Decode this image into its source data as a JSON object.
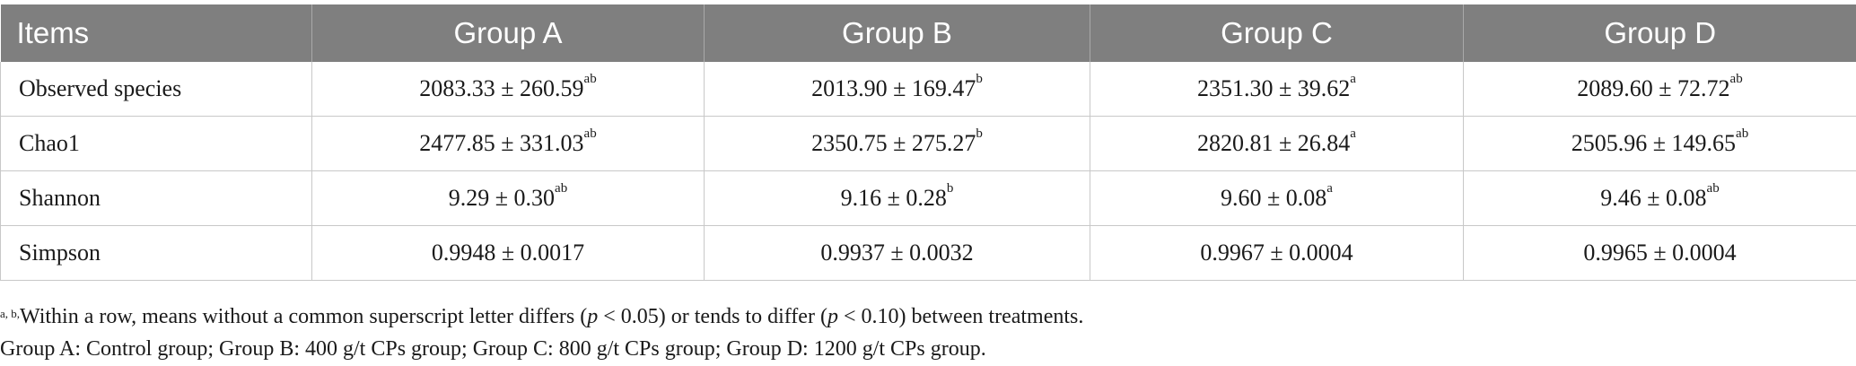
{
  "table": {
    "headers": [
      "Items",
      "Group A",
      "Group B",
      "Group C",
      "Group D"
    ],
    "rows": [
      {
        "item": "Observed species",
        "cells": [
          {
            "value": "2083.33 ± 260.59",
            "sup": "ab"
          },
          {
            "value": "2013.90 ± 169.47",
            "sup": "b"
          },
          {
            "value": "2351.30 ± 39.62",
            "sup": "a"
          },
          {
            "value": "2089.60 ± 72.72",
            "sup": "ab"
          }
        ]
      },
      {
        "item": "Chao1",
        "cells": [
          {
            "value": "2477.85 ± 331.03",
            "sup": "ab"
          },
          {
            "value": "2350.75 ± 275.27",
            "sup": "b"
          },
          {
            "value": "2820.81 ± 26.84",
            "sup": "a"
          },
          {
            "value": "2505.96 ± 149.65",
            "sup": "ab"
          }
        ]
      },
      {
        "item": "Shannon",
        "cells": [
          {
            "value": "9.29 ± 0.30",
            "sup": "ab"
          },
          {
            "value": "9.16 ± 0.28",
            "sup": "b"
          },
          {
            "value": "9.60 ± 0.08",
            "sup": "a"
          },
          {
            "value": "9.46 ± 0.08",
            "sup": "ab"
          }
        ]
      },
      {
        "item": "Simpson",
        "cells": [
          {
            "value": "0.9948 ± 0.0017",
            "sup": ""
          },
          {
            "value": "0.9937 ± 0.0032",
            "sup": ""
          },
          {
            "value": "0.9967 ± 0.0004",
            "sup": ""
          },
          {
            "value": "0.9965 ± 0.0004",
            "sup": ""
          }
        ]
      }
    ]
  },
  "footnotes": {
    "note1_sup": "a, b,",
    "note1_part1": "Within a row, means without a common superscript letter differs (",
    "note1_p1": "p",
    "note1_part2": " < 0.05) or tends to differ (",
    "note1_p2": "p",
    "note1_part3": " < 0.10) between treatments.",
    "note2": "Group A: Control group; Group B: 400 g/t CPs group; Group C: 800 g/t CPs group; Group D: 1200 g/t CPs group."
  },
  "colors": {
    "header_bg": "#7f7f7f",
    "header_text": "#ffffff",
    "grid": "#c8c8c8"
  }
}
